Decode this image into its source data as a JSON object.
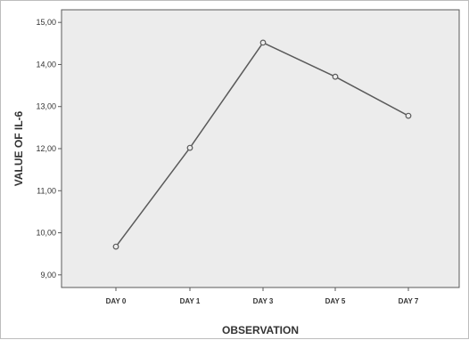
{
  "chart_data": {
    "type": "line",
    "title": "",
    "xlabel": "OBSERVATION",
    "ylabel": "VALUE OF IL-6",
    "categories": [
      "DAY 0",
      "DAY 1",
      "DAY 3",
      "DAY 5",
      "DAY 7"
    ],
    "series": [
      {
        "values": [
          9.67,
          12.02,
          14.52,
          13.71,
          12.78
        ]
      }
    ],
    "ylim": [
      8.7,
      15.3
    ],
    "yticks": [
      9,
      10,
      11,
      12,
      13,
      14,
      15
    ],
    "ytick_labels": [
      "9,00",
      "10,00",
      "11,00",
      "12,00",
      "13,00",
      "14,00",
      "15,00"
    ],
    "grid": false,
    "legend": "none",
    "colors": {
      "line": "#5a5a5a",
      "plot_background": "#ececec",
      "marker_fill": "#ececec"
    }
  }
}
